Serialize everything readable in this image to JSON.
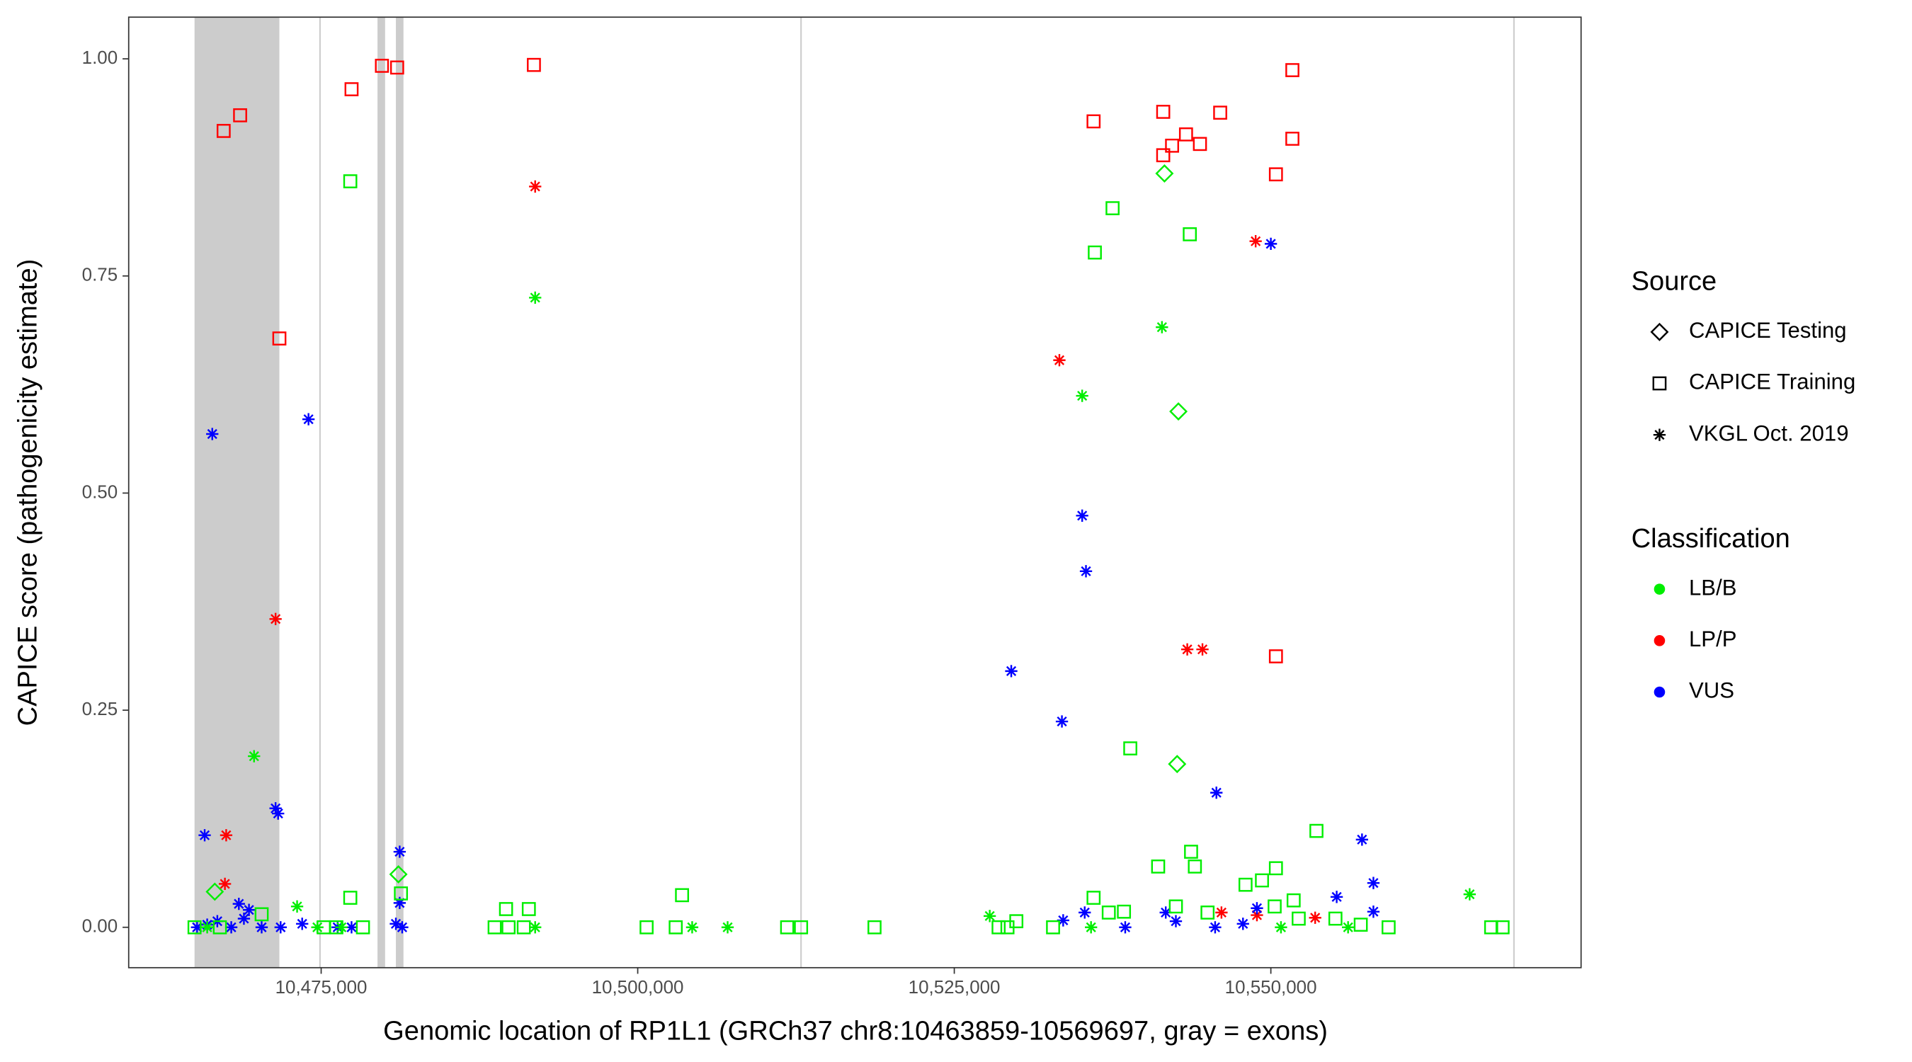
{
  "chart_data": {
    "type": "scatter",
    "x_label": "Genomic location of RP1L1 (GRCh37 chr8:10463859-10569697, gray = exons)",
    "y_label": "CAPICE score (pathogenicity estimate)",
    "xlim": [
      10459800,
      10574500
    ],
    "ylim": [
      -0.0465,
      1.048
    ],
    "grid": false,
    "xticks": [
      {
        "value": 10475000,
        "label": "10,475,000"
      },
      {
        "value": 10500000,
        "label": "10,500,000"
      },
      {
        "value": 10525000,
        "label": "10,525,000"
      },
      {
        "value": 10550000,
        "label": "10,550,000"
      }
    ],
    "yticks": [
      {
        "value": 0,
        "label": "0.00"
      },
      {
        "value": 0.25,
        "label": "0.25"
      },
      {
        "value": 0.5,
        "label": "0.50"
      },
      {
        "value": 0.75,
        "label": "0.75"
      },
      {
        "value": 1,
        "label": "1.00"
      }
    ],
    "exons": [
      [
        10465000,
        10471700
      ],
      [
        10474850,
        10474950
      ],
      [
        10479450,
        10480050
      ],
      [
        10480900,
        10481500
      ],
      [
        10512840,
        10512940
      ],
      [
        10569140,
        10569240
      ]
    ],
    "exon_color": "#cccccc",
    "shape_legend": {
      "title": "Source",
      "entries": [
        {
          "name": "CAPICE Testing",
          "shape": "diamond"
        },
        {
          "name": "CAPICE Training",
          "shape": "square"
        },
        {
          "name": "VKGL Oct. 2019",
          "shape": "asterisk"
        }
      ]
    },
    "color_legend": {
      "title": "Classification",
      "entries": [
        {
          "name": "LB/B",
          "color": "#00ee00"
        },
        {
          "name": "LP/P",
          "color": "#ff0000"
        },
        {
          "name": "VUS",
          "color": "#0000ff"
        }
      ]
    },
    "series": [
      {
        "source": 1,
        "classification": 1,
        "x": [
          10467300,
          10468600,
          10471700,
          10477400,
          10479800,
          10481000,
          10491800,
          10536000,
          10541500,
          10541500,
          10542200,
          10543300,
          10544400,
          10546000,
          10551700,
          10551700,
          10550400,
          10550400
        ],
        "values": [
          0.917,
          0.935,
          0.678,
          0.965,
          0.992,
          0.99,
          0.993,
          0.928,
          0.939,
          0.889,
          0.9,
          0.913,
          0.902,
          0.938,
          0.987,
          0.908,
          0.867,
          0.312
        ]
      },
      {
        "source": 2,
        "classification": 1,
        "x": [
          10491900,
          10471400,
          10467500,
          10467400,
          10533300,
          10548800,
          10543400,
          10544600,
          10546100,
          10548900,
          10553500
        ],
        "values": [
          0.853,
          0.355,
          0.106,
          0.05,
          0.653,
          0.79,
          0.32,
          0.32,
          0.017,
          0.014,
          0.011
        ]
      },
      {
        "source": 2,
        "classification": 2,
        "x": [
          10466400,
          10474000,
          10465800,
          10471400,
          10471600,
          10481200,
          10481200,
          10469300,
          10468500,
          10535100,
          10535400,
          10529500,
          10533500,
          10550000,
          10545700,
          10557200,
          10558100,
          10555200,
          10558100,
          10548900,
          10465200,
          10466000,
          10466800,
          10467900,
          10468900,
          10470300,
          10471800,
          10473500,
          10476300,
          10477400,
          10480900,
          10481400,
          10533600,
          10535300,
          10538500,
          10541700,
          10542500,
          10545600,
          10547800
        ],
        "values": [
          0.568,
          0.585,
          0.106,
          0.137,
          0.131,
          0.087,
          0.028,
          0.02,
          0.027,
          0.474,
          0.41,
          0.295,
          0.237,
          0.787,
          0.155,
          0.101,
          0.051,
          0.035,
          0.018,
          0.022,
          0,
          0.003,
          0.007,
          0,
          0.01,
          0,
          0,
          0.004,
          0,
          0,
          0.004,
          0,
          0.008,
          0.017,
          0,
          0.017,
          0.007,
          0,
          0.004
        ]
      },
      {
        "source": 2,
        "classification": 0,
        "x": [
          10491900,
          10469700,
          10541400,
          10535100,
          10473100,
          10527800,
          10565700,
          10504300,
          10507100,
          10491900,
          10476600,
          10466000,
          10474700,
          10535800,
          10550800,
          10556100
        ],
        "values": [
          0.725,
          0.197,
          0.691,
          0.612,
          0.024,
          0.013,
          0.038,
          0,
          0,
          0,
          0,
          0,
          0,
          0,
          0,
          0
        ]
      },
      {
        "source": 1,
        "classification": 0,
        "x": [
          10477300,
          10537500,
          10536100,
          10543600,
          10538900,
          10553600,
          10503500,
          10489600,
          10491400,
          10477300,
          10481300,
          10541100,
          10543700,
          10544000,
          10550400,
          10551800,
          10548000,
          10549300,
          10488700,
          10489800,
          10491000,
          10500700,
          10503000,
          10511800,
          10512900,
          10518700,
          10528500,
          10529200,
          10529900,
          10532800,
          10536000,
          10537200,
          10538400,
          10559300,
          10567400,
          10568300,
          10465000,
          10467000,
          10470300,
          10475200,
          10476200,
          10478300,
          10542500,
          10545000,
          10550300,
          10552200,
          10555100,
          10557100
        ],
        "values": [
          0.859,
          0.828,
          0.777,
          0.798,
          0.206,
          0.111,
          0.037,
          0.021,
          0.021,
          0.034,
          0.039,
          0.07,
          0.087,
          0.07,
          0.068,
          0.031,
          0.049,
          0.054,
          0,
          0,
          0,
          0,
          0,
          0,
          0,
          0,
          0,
          0,
          0.007,
          0,
          0.034,
          0.017,
          0.018,
          0,
          0,
          0,
          0,
          0,
          0.015,
          0,
          0,
          0,
          0.024,
          0.017,
          0.024,
          0.01,
          0.01,
          0.003
        ]
      },
      {
        "source": 0,
        "classification": 0,
        "x": [
          10541600,
          10542700,
          10542600,
          10466600,
          10481100
        ],
        "values": [
          0.868,
          0.594,
          0.188,
          0.041,
          0.061
        ]
      }
    ]
  }
}
